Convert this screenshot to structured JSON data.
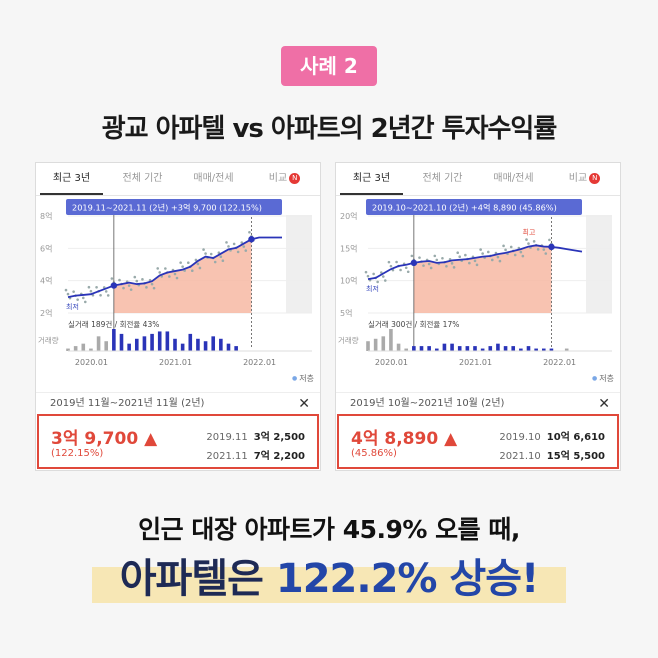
{
  "badge": "사례 2",
  "title": "광교 아파텔 vs 아파트의 2년간 투자수익률",
  "panels": [
    {
      "tabs": [
        "최근 3년",
        "전체 기간",
        "매매/전세",
        "비교"
      ],
      "tooltip": "2019.11~2021.11 (2년)  +3억 9,700 (122.15%)",
      "y_ticks": [
        "8억",
        "6억",
        "4억",
        "2억"
      ],
      "x_ticks": [
        "2020.01",
        "2021.01",
        "2022.01"
      ],
      "low_label": "최저",
      "deal_label": "실거래 189건 / 회전율 43%",
      "volume_label": "거래량",
      "legend": "저층",
      "period": "2019년 11월~2021년 11월 (2년)",
      "close": "✕",
      "amount": "3억 9,700 ▲",
      "pct": "(122.15%)",
      "rows": [
        {
          "date": "2019.11",
          "price": "3억 2,500"
        },
        {
          "date": "2021.11",
          "price": "7억 2,200"
        }
      ]
    },
    {
      "tabs": [
        "최근 3년",
        "전체 기간",
        "매매/전세",
        "비교"
      ],
      "tooltip": "2019.10~2021.10 (2년)  +4억 8,890 (45.86%)",
      "y_ticks": [
        "20억",
        "15억",
        "10억",
        "5억"
      ],
      "x_ticks": [
        "2020.01",
        "2021.01",
        "2022.01"
      ],
      "low_label": "최저",
      "high_label": "최고",
      "deal_label": "실거래 300건 / 회전율 17%",
      "volume_label": "거래량",
      "legend": "저층",
      "period": "2019년 10월~2021년 10월 (2년)",
      "close": "✕",
      "amount": "4억 8,890 ▲",
      "pct": "(45.86%)",
      "rows": [
        {
          "date": "2019.10",
          "price": "10억 6,610"
        },
        {
          "date": "2021.10",
          "price": "15억 5,500"
        }
      ]
    }
  ],
  "subtitle": "인근 대장 아파트가 45.9% 오를 때,",
  "headline": {
    "part1": "아파텔은 ",
    "part2": "122.2% 상승!"
  },
  "colors": {
    "accent_red": "#e0483a",
    "line_blue": "#2a34b8",
    "badge_pink": "#ef6fa6",
    "highlight": "#f7e7b5"
  },
  "chart_data": [
    {
      "type": "line",
      "title": "",
      "ylim": [
        2,
        8.5
      ],
      "x": [
        0,
        1,
        2,
        3,
        4,
        5,
        6,
        7,
        8,
        9,
        10,
        11,
        12,
        13,
        14,
        15,
        16,
        17,
        18,
        19,
        20,
        21,
        22,
        23,
        24,
        25,
        26,
        27,
        28
      ],
      "series": [
        {
          "values": [
            3.1,
            3.2,
            3.25,
            3.3,
            3.5,
            3.7,
            3.9,
            4.0,
            4.1,
            4.0,
            4.05,
            4.2,
            4.6,
            4.8,
            4.9,
            5.0,
            5.2,
            5.6,
            5.9,
            5.8,
            6.1,
            6.4,
            6.5,
            6.8,
            7.1,
            7.22,
            7.22,
            7.22,
            7.22
          ]
        }
      ],
      "volume": [
        1,
        2,
        3,
        1,
        6,
        4,
        9,
        7,
        3,
        5,
        6,
        7,
        8,
        8,
        5,
        3,
        7,
        5,
        4,
        6,
        5,
        3,
        2,
        0,
        0,
        0,
        0,
        0,
        0
      ],
      "start": 3.25,
      "end": 7.22
    },
    {
      "type": "line",
      "title": "",
      "ylim": [
        5,
        20
      ],
      "x": [
        0,
        1,
        2,
        3,
        4,
        5,
        6,
        7,
        8,
        9,
        10,
        11,
        12,
        13,
        14,
        15,
        16,
        17,
        18,
        19,
        20,
        21,
        22,
        23,
        24,
        25,
        26,
        27,
        28
      ],
      "series": [
        {
          "values": [
            10.4,
            10.6,
            11.3,
            12.0,
            12.5,
            12.7,
            13.0,
            13.2,
            13.3,
            13.0,
            13.1,
            13.4,
            13.5,
            13.6,
            13.8,
            14.0,
            14.1,
            14.4,
            14.6,
            14.9,
            15.2,
            15.6,
            15.8,
            15.6,
            15.55,
            15.4,
            15.2,
            15.0,
            14.8
          ]
        }
      ],
      "volume": [
        4,
        5,
        6,
        9,
        3,
        1,
        2,
        2,
        2,
        1,
        3,
        3,
        2,
        2,
        2,
        1,
        2,
        3,
        2,
        2,
        1,
        2,
        1,
        1,
        1,
        0,
        1,
        0,
        0
      ],
      "start": 10.66,
      "end": 15.55
    }
  ]
}
